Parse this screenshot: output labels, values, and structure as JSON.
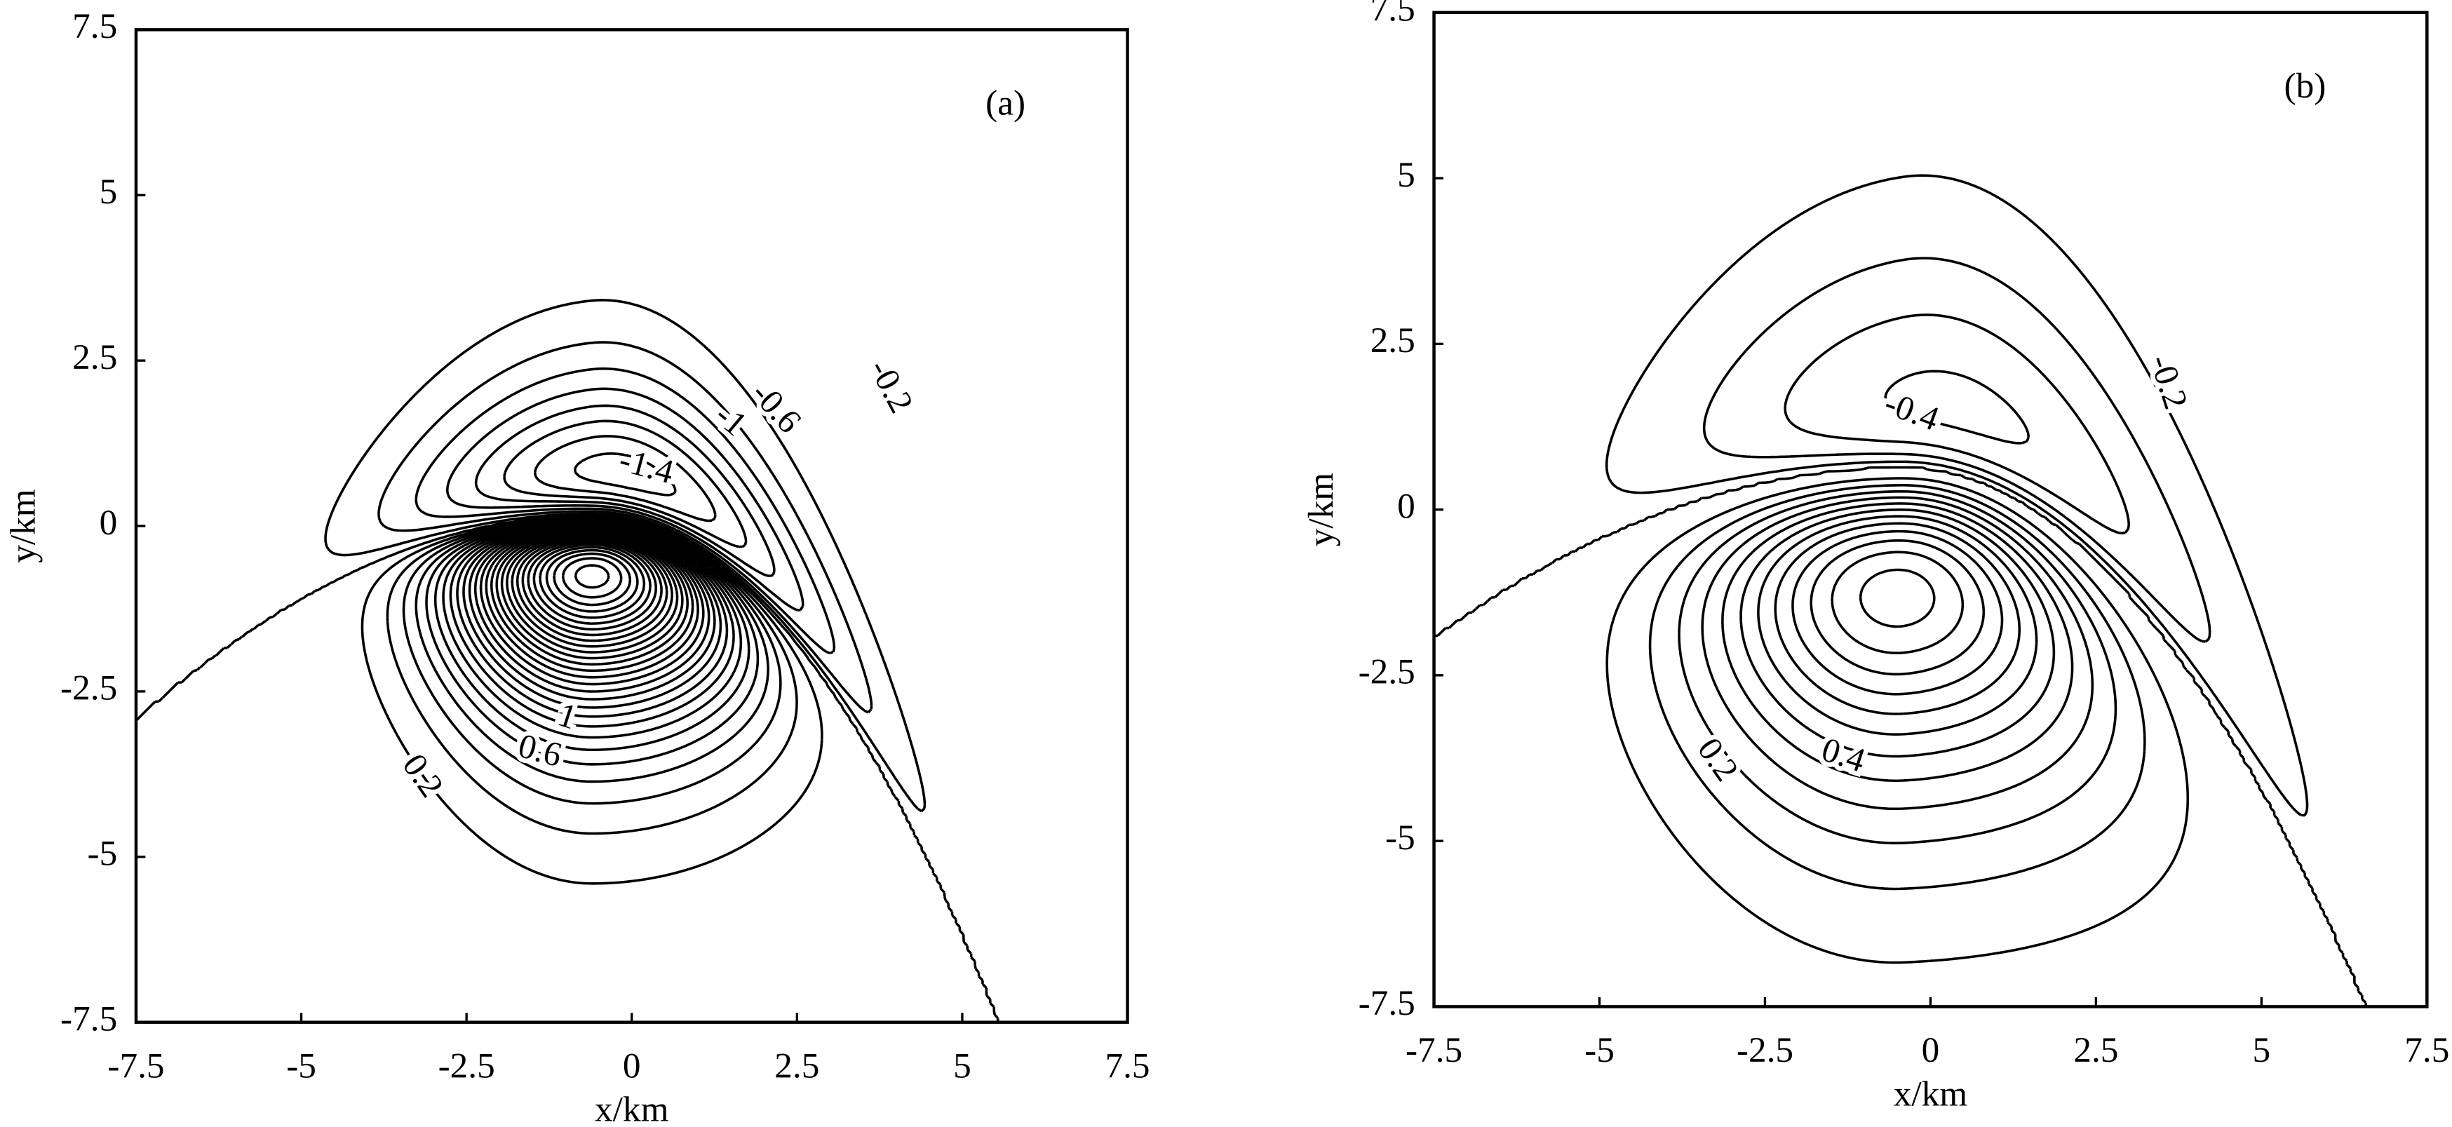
{
  "chart_data": [
    {
      "type": "contour",
      "label": "(a)",
      "x_label": "x/km",
      "y_label": "y/km",
      "xlim": [
        -7.5,
        7.5
      ],
      "ylim": [
        -7.5,
        7.5
      ],
      "xticks": [
        -7.5,
        -5,
        -2.5,
        0,
        2.5,
        5,
        7.5
      ],
      "yticks": [
        -7.5,
        -5,
        -2.5,
        0,
        2.5,
        5,
        7.5
      ],
      "color": "#000000",
      "levels": [
        -1.6,
        -1.4,
        -1.2,
        -1,
        -0.8,
        -0.6,
        -0.4,
        -0.2,
        0,
        0.2,
        0.4,
        0.6,
        0.8,
        1,
        1.2,
        1.4,
        1.6,
        1.8,
        2,
        2.2,
        2.4,
        2.6,
        2.8,
        3,
        3.2,
        3.4,
        3.6,
        3.8,
        4,
        4.2,
        4.4,
        4.6,
        4.8,
        5,
        5.2,
        5.4,
        5.6
      ]
    },
    {
      "type": "contour",
      "label": "(b)",
      "x_label": "x/km",
      "y_label": "y/km",
      "xlim": [
        -7.5,
        7.5
      ],
      "ylim": [
        -7.5,
        7.5
      ],
      "xticks": [
        -7.5,
        -5,
        -2.5,
        0,
        2.5,
        5,
        7.5
      ],
      "yticks": [
        -7.5,
        -5,
        -2.5,
        0,
        2.5,
        5,
        7.5
      ],
      "color": "#000000",
      "levels": [
        -0.8,
        -0.6,
        -0.4,
        -0.2,
        0,
        0.2,
        0.4,
        0.6,
        0.8,
        1,
        1.2,
        1.4,
        1.6,
        1.8,
        2,
        2.2,
        2.4
      ]
    }
  ]
}
